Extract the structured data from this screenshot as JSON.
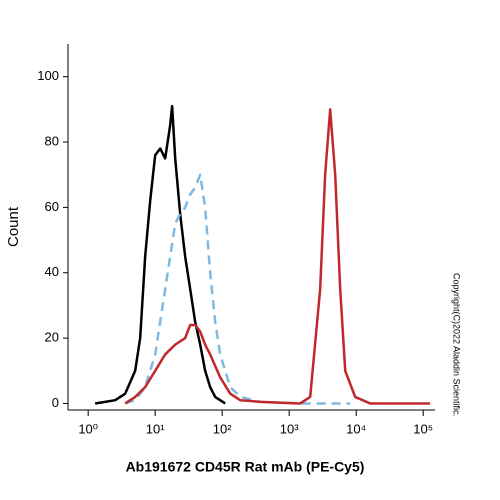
{
  "chart_data": {
    "type": "line",
    "x_label": "Ab191672 CD45R Rat mAb (PE-Cy5)",
    "y_label": "Count",
    "annotation": "Copyright(C)2022 Aladdin Scientific.",
    "xscale": "log",
    "xlim": [
      0.5,
      150000
    ],
    "xticks": [
      {
        "value": 1,
        "label": "10⁰"
      },
      {
        "value": 10,
        "label": "10¹"
      },
      {
        "value": 100,
        "label": "10²"
      },
      {
        "value": 1000,
        "label": "10³"
      },
      {
        "value": 10000,
        "label": "10⁴"
      },
      {
        "value": 100000,
        "label": "10⁵"
      }
    ],
    "ylim": [
      -2,
      110
    ],
    "yticks": [
      0,
      20,
      40,
      60,
      80,
      100
    ],
    "series": [
      {
        "color": "#000000",
        "dashed": false,
        "x": [
          1.27,
          1.79,
          2.53,
          3.57,
          5.03,
          5.97,
          7.09,
          8.42,
          10,
          11.9,
          14.1,
          16.7,
          17.9,
          19.9,
          23.6,
          28.0,
          33.3,
          39.5,
          47.0,
          55.7,
          66.2,
          78.6,
          93.3,
          111
        ],
        "values": [
          0,
          0.5,
          1,
          3,
          10,
          20,
          45,
          62,
          76,
          78,
          75,
          85,
          91,
          75,
          58,
          45,
          35,
          25,
          18,
          10,
          5,
          2,
          1,
          0
        ]
      },
      {
        "color": "#7fb8e0",
        "dashed": true,
        "x": [
          3.57,
          5.03,
          7.09,
          10,
          14.1,
          19.9,
          23.6,
          28.0,
          33.3,
          39.5,
          47.0,
          55.7,
          66.2,
          78.6,
          93.3,
          132,
          186,
          369,
          1459,
          8130
        ],
        "values": [
          0,
          1,
          5,
          15,
          35,
          55,
          58,
          60,
          64,
          66,
          70,
          60,
          40,
          25,
          15,
          5,
          2,
          0.5,
          0,
          0
        ]
      },
      {
        "color": "#c0282b",
        "dashed": false,
        "x": [
          3.57,
          5.03,
          7.09,
          10,
          14.1,
          19.9,
          28.0,
          33.3,
          39.5,
          47.0,
          55.7,
          66.2,
          93.3,
          132,
          186,
          369,
          1459,
          2058,
          2900,
          3440,
          4090,
          4860,
          5770,
          6860,
          9660,
          16200,
          45400,
          126000
        ],
        "values": [
          0,
          2,
          5,
          10,
          15,
          18,
          20,
          24,
          24,
          22,
          18,
          15,
          8,
          3,
          1,
          0.5,
          0,
          2,
          35,
          70,
          90,
          70,
          35,
          10,
          2,
          0,
          0,
          0
        ]
      }
    ]
  }
}
